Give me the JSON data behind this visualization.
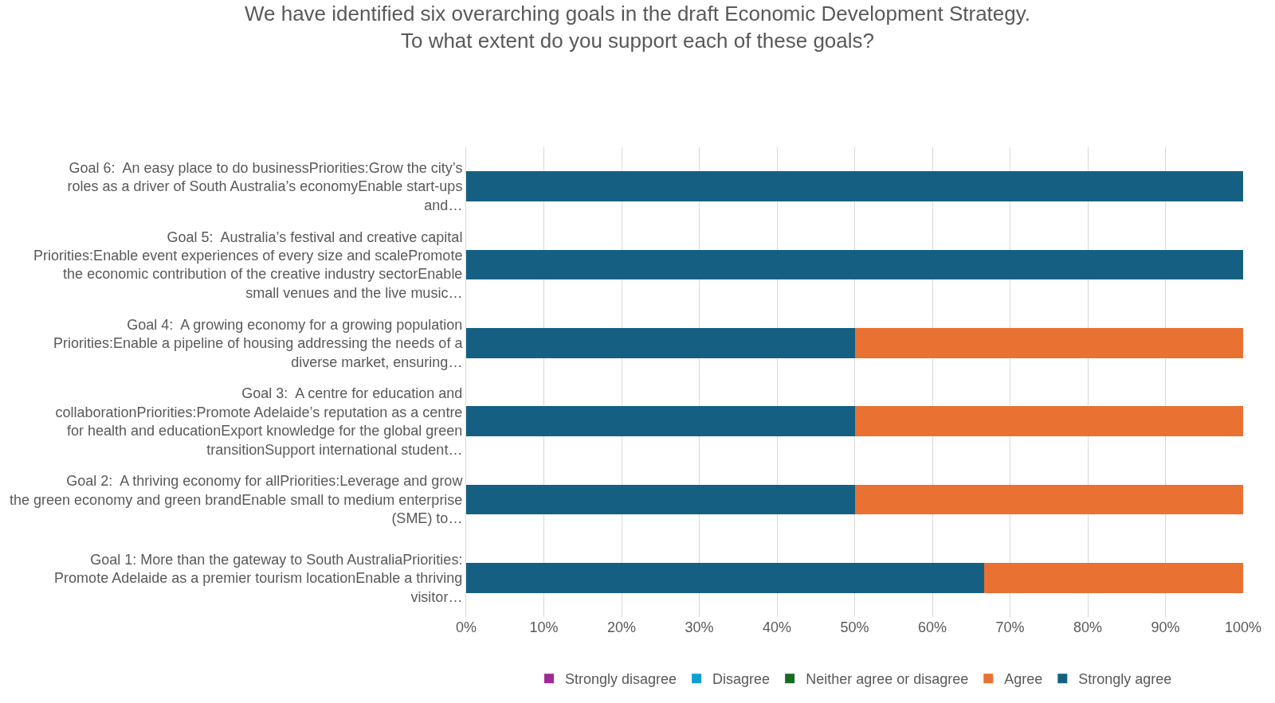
{
  "chart_data": {
    "type": "bar",
    "orientation": "horizontal",
    "stacked": true,
    "title": "We have identified six overarching goals in the draft Economic Development Strategy.\nTo what extent do you support each of these goals?",
    "categories": [
      "Goal 6:  An easy place to do businessPriorities:Grow the city’s roles as a driver of South Australia’s economyEnable start-ups and…",
      "Goal 5:  Australia’s festival and creative capital Priorities:Enable event experiences of every size and scalePromote the economic contribution of the creative industry sectorEnable small venues and the live music…",
      "Goal 4:  A growing economy for a growing population Priorities:Enable a pipeline of housing addressing the needs of a diverse market, ensuring…",
      "Goal 3:  A centre for education and collaborationPriorities:Promote Adelaide’s reputation as a centre for health and educationExport knowledge for the global green transitionSupport international student…",
      "Goal 2:  A thriving economy for allPriorities:Leverage and grow the green economy and green brandEnable small to medium enterprise (SME) to…",
      "Goal 1: More than the gateway to South AustraliaPriorities:  Promote Adelaide as a premier tourism locationEnable a thriving visitor…"
    ],
    "series": [
      {
        "name": "Strongly agree",
        "color": "#156082",
        "values": [
          100,
          100,
          50,
          50,
          50,
          66.7
        ]
      },
      {
        "name": "Agree",
        "color": "#e97132",
        "values": [
          0,
          0,
          50,
          50,
          50,
          33.3
        ]
      },
      {
        "name": "Neither agree or disagree",
        "color": "#196b24",
        "values": [
          0,
          0,
          0,
          0,
          0,
          0
        ]
      },
      {
        "name": "Disagree",
        "color": "#0f9ed5",
        "values": [
          0,
          0,
          0,
          0,
          0,
          0
        ]
      },
      {
        "name": "Strongly disagree",
        "color": "#a02b93",
        "values": [
          0,
          0,
          0,
          0,
          0,
          0
        ]
      }
    ],
    "xlim": [
      0,
      100
    ],
    "xticks": [
      {
        "value": 0,
        "label": "0%"
      },
      {
        "value": 10,
        "label": "10%"
      },
      {
        "value": 20,
        "label": "20%"
      },
      {
        "value": 30,
        "label": "30%"
      },
      {
        "value": 40,
        "label": "40%"
      },
      {
        "value": 50,
        "label": "50%"
      },
      {
        "value": 60,
        "label": "60%"
      },
      {
        "value": 70,
        "label": "70%"
      },
      {
        "value": 80,
        "label": "80%"
      },
      {
        "value": 90,
        "label": "90%"
      },
      {
        "value": 100,
        "label": "100%"
      }
    ],
    "grid": "x",
    "legend": "bottom"
  }
}
